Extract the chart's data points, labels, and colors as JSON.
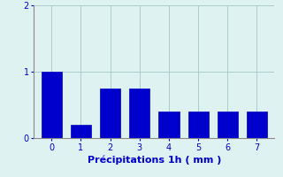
{
  "categories": [
    0,
    1,
    2,
    3,
    4,
    5,
    6,
    7
  ],
  "values": [
    1.0,
    0.2,
    0.75,
    0.75,
    0.4,
    0.4,
    0.4,
    0.4
  ],
  "bar_color": "#0000cc",
  "bar_edgecolor": "#0000bb",
  "background_color": "#dff2f2",
  "xlabel": "Précipitations 1h ( mm )",
  "ylim": [
    0,
    2
  ],
  "yticks": [
    0,
    1,
    2
  ],
  "xlim": [
    -0.6,
    7.6
  ],
  "grid_color": "#aacccc",
  "xlabel_fontsize": 8,
  "tick_fontsize": 7,
  "tick_color": "#0000cc",
  "label_color": "#0000cc"
}
